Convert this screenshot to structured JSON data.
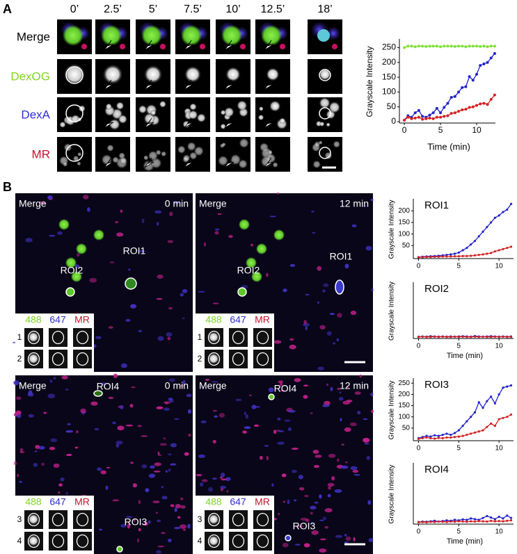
{
  "panel_a": {
    "label": "A",
    "times": [
      "0’",
      "2.5’",
      "5’",
      "7.5’",
      "10’",
      "12.5’",
      "18’"
    ],
    "rows": [
      {
        "label": "Merge",
        "color": "#000000"
      },
      {
        "label": "DexOG",
        "color": "#7ed321"
      },
      {
        "label": "DexA",
        "color": "#2f2fd0"
      },
      {
        "label": "MR",
        "color": "#c8102e"
      }
    ]
  },
  "panel_b": {
    "label": "B",
    "inset_colors": [
      "#7ed321",
      "#2f2fd0",
      "#c8102e"
    ],
    "images": [
      {
        "channel": "Merge",
        "time": "0 min",
        "rois": [
          "ROI2",
          "ROI1"
        ],
        "inset": {
          "channels": [
            "488",
            "647",
            "MR"
          ],
          "rows": [
            "1",
            "2"
          ]
        }
      },
      {
        "channel": "Merge",
        "time": "12 min",
        "rois": [
          "ROI2",
          "ROI1"
        ],
        "inset": {
          "channels": [
            "488",
            "647",
            "MR"
          ],
          "rows": [
            "1",
            "2"
          ]
        }
      },
      {
        "channel": "Merge",
        "time": "0 min",
        "rois": [
          "ROI4",
          "ROI3"
        ],
        "inset": {
          "channels": [
            "488",
            "647",
            "MR"
          ],
          "rows": [
            "3",
            "4"
          ]
        }
      },
      {
        "channel": "Merge",
        "time": "12 min",
        "rois": [
          "ROI4",
          "ROI3"
        ],
        "inset": {
          "channels": [
            "488",
            "647",
            "MR"
          ],
          "rows": [
            "3",
            "4"
          ]
        }
      }
    ]
  },
  "chart_data": [
    {
      "type": "line",
      "y_label": "Grayscale Intensity",
      "x_label": "Time (min)",
      "xlim": [
        -0.3,
        12.6
      ],
      "ylim": [
        0,
        270
      ],
      "xticks": [
        0,
        5,
        10
      ],
      "yticks": [
        0,
        50,
        100,
        150,
        200,
        250
      ],
      "x": [
        0,
        0.5,
        1,
        1.5,
        2,
        2.5,
        3,
        3.5,
        4,
        4.5,
        5,
        5.5,
        6,
        6.5,
        7,
        7.5,
        8,
        8.5,
        9,
        9.5,
        10,
        10.5,
        11,
        11.5,
        12,
        12.5
      ],
      "series": [
        {
          "color": "#7fe03a",
          "values": [
            250,
            255,
            255,
            253,
            255,
            255,
            254,
            255,
            255,
            255,
            253,
            255,
            255,
            255,
            254,
            255,
            255,
            253,
            255,
            255,
            255,
            254,
            255,
            253,
            255,
            255
          ]
        },
        {
          "color": "#2222cc",
          "values": [
            5,
            20,
            15,
            30,
            38,
            18,
            15,
            22,
            30,
            45,
            30,
            48,
            62,
            82,
            85,
            100,
            115,
            118,
            152,
            140,
            160,
            190,
            195,
            200,
            215,
            230
          ]
        },
        {
          "color": "#d42020",
          "values": [
            5,
            15,
            10,
            12,
            15,
            8,
            10,
            12,
            10,
            15,
            15,
            18,
            20,
            28,
            30,
            35,
            40,
            42,
            48,
            50,
            55,
            60,
            62,
            58,
            75,
            90
          ]
        }
      ]
    },
    {
      "type": "line",
      "title": "ROI1",
      "y_label": "Grayscale Intensity",
      "xlim": [
        -0.3,
        11.8
      ],
      "ylim": [
        0,
        240
      ],
      "xticks": [
        0,
        5,
        10
      ],
      "yticks": [
        50,
        100,
        150,
        200
      ],
      "x": [
        0,
        0.5,
        1,
        1.5,
        2,
        2.5,
        3,
        3.5,
        4,
        4.5,
        5,
        5.5,
        6,
        6.5,
        7,
        7.5,
        8,
        8.5,
        9,
        9.5,
        10,
        10.5,
        11,
        11.5
      ],
      "series": [
        {
          "color": "#2222cc",
          "values": [
            0,
            2,
            3,
            4,
            5,
            6,
            8,
            10,
            12,
            15,
            20,
            30,
            40,
            55,
            70,
            90,
            110,
            130,
            150,
            170,
            180,
            195,
            205,
            230
          ]
        },
        {
          "color": "#d42020",
          "values": [
            0,
            0,
            1,
            1,
            2,
            2,
            3,
            3,
            3,
            4,
            4,
            5,
            5,
            6,
            8,
            10,
            12,
            15,
            18,
            25,
            30,
            35,
            40,
            45
          ]
        }
      ]
    },
    {
      "type": "line",
      "title": "ROI2",
      "y_label": "Grayscale Intensity",
      "x_label": "Time (min)",
      "xlim": [
        -0.3,
        11.8
      ],
      "ylim": [
        0,
        240
      ],
      "xticks": [
        0,
        5,
        10
      ],
      "x": [
        0,
        0.5,
        1,
        1.5,
        2,
        2.5,
        3,
        3.5,
        4,
        4.5,
        5,
        5.5,
        6,
        6.5,
        7,
        7.5,
        8,
        8.5,
        9,
        9.5,
        10,
        10.5,
        11,
        11.5
      ],
      "series": [
        {
          "color": "#2222cc",
          "values": [
            2,
            3,
            2,
            4,
            3,
            2,
            3,
            2,
            3,
            2,
            3,
            4,
            3,
            2,
            5,
            3,
            2,
            3,
            4,
            3,
            2,
            3,
            2,
            3
          ]
        },
        {
          "color": "#d42020",
          "values": [
            1,
            2,
            1,
            1,
            2,
            1,
            2,
            1,
            1,
            2,
            1,
            2,
            1,
            1,
            2,
            1,
            2,
            1,
            1,
            2,
            1,
            2,
            1,
            1
          ]
        }
      ]
    },
    {
      "type": "line",
      "title": "ROI3",
      "y_label": "Grayscale Intensity",
      "xlim": [
        -0.3,
        11.8
      ],
      "ylim": [
        0,
        260
      ],
      "xticks": [
        0,
        5,
        10
      ],
      "yticks": [
        50,
        100,
        150,
        200,
        250
      ],
      "x": [
        0,
        0.5,
        1,
        1.5,
        2,
        2.5,
        3,
        3.5,
        4,
        4.5,
        5,
        5.5,
        6,
        6.5,
        7,
        7.5,
        8,
        8.5,
        9,
        9.5,
        10,
        10.5,
        11,
        11.5
      ],
      "series": [
        {
          "color": "#2222cc",
          "values": [
            5,
            10,
            15,
            12,
            18,
            15,
            20,
            25,
            20,
            28,
            40,
            60,
            80,
            100,
            120,
            165,
            140,
            170,
            190,
            160,
            200,
            230,
            235,
            240
          ]
        },
        {
          "color": "#d42020",
          "values": [
            2,
            5,
            8,
            5,
            3,
            6,
            5,
            8,
            8,
            10,
            12,
            15,
            20,
            25,
            30,
            35,
            40,
            55,
            70,
            60,
            90,
            95,
            100,
            110
          ]
        }
      ]
    },
    {
      "type": "line",
      "title": "ROI4",
      "y_label": "Grayscale Intensity",
      "x_label": "Time (min)",
      "xlim": [
        -0.3,
        11.8
      ],
      "ylim": [
        0,
        240
      ],
      "xticks": [
        0,
        5,
        10
      ],
      "x": [
        0,
        0.5,
        1,
        1.5,
        2,
        2.5,
        3,
        3.5,
        4,
        4.5,
        5,
        5.5,
        6,
        6.5,
        7,
        7.5,
        8,
        8.5,
        9,
        9.5,
        10,
        10.5,
        11,
        11.5
      ],
      "series": [
        {
          "color": "#2222cc",
          "values": [
            3,
            5,
            4,
            6,
            8,
            5,
            7,
            10,
            8,
            12,
            10,
            14,
            12,
            18,
            15,
            12,
            20,
            28,
            22,
            15,
            25,
            18,
            30,
            20
          ]
        },
        {
          "color": "#d42020",
          "values": [
            2,
            3,
            2,
            4,
            3,
            5,
            4,
            3,
            5,
            4,
            6,
            5,
            4,
            6,
            5,
            7,
            6,
            5,
            8,
            6,
            7,
            6,
            8,
            10
          ]
        }
      ]
    }
  ]
}
